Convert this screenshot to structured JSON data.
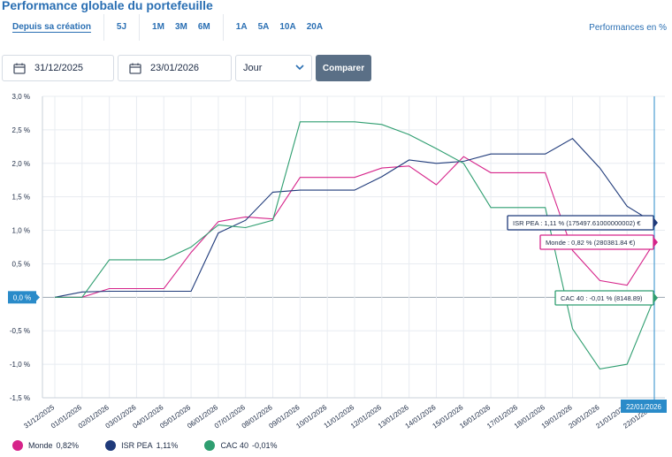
{
  "header": {
    "title": "Performance globale du portefeuille",
    "performance_link": "Performances en %"
  },
  "tabs": {
    "groups": [
      [
        {
          "label": "Depuis sa création",
          "active": true
        }
      ],
      [
        {
          "label": "5J",
          "active": false
        }
      ],
      [
        {
          "label": "1M",
          "active": false
        },
        {
          "label": "3M",
          "active": false
        },
        {
          "label": "6M",
          "active": false
        }
      ],
      [
        {
          "label": "1A",
          "active": false
        },
        {
          "label": "5A",
          "active": false
        },
        {
          "label": "10A",
          "active": false
        },
        {
          "label": "20A",
          "active": false
        }
      ]
    ]
  },
  "filters": {
    "start_date": "31/12/2025",
    "end_date": "23/01/2026",
    "granularity": "Jour",
    "compare_label": "Comparer"
  },
  "colors": {
    "monde": "#d6248a",
    "isr_pea": "#1f3a7a",
    "cac40": "#2f9e70",
    "accent": "#2a6fb3",
    "marker": "#2a8bc9"
  },
  "chart_data": {
    "type": "line",
    "x": [
      "31/12/2025",
      "01/01/2026",
      "02/01/2026",
      "03/01/2026",
      "04/01/2026",
      "05/01/2026",
      "06/01/2026",
      "07/01/2026",
      "08/01/2026",
      "09/01/2026",
      "10/01/2026",
      "11/01/2026",
      "12/01/2026",
      "13/01/2026",
      "14/01/2026",
      "15/01/2026",
      "16/01/2026",
      "17/01/2026",
      "18/01/2026",
      "19/01/2026",
      "20/01/2026",
      "21/01/2026",
      "22/01/2026"
    ],
    "y_ticks": [
      "3,0 %",
      "2,5 %",
      "2,0 %",
      "1,5 %",
      "1,0 %",
      "0,5 %",
      "0,0 %",
      "-0,5 %",
      "-1,0 %",
      "-1,5 %"
    ],
    "ylim": [
      -1.5,
      3.0
    ],
    "grid": true,
    "series": [
      {
        "name": "Monde",
        "color_key": "monde",
        "values": [
          0,
          0,
          0.13,
          0.13,
          0.13,
          0.67,
          1.13,
          1.2,
          1.17,
          1.79,
          1.79,
          1.79,
          1.93,
          1.96,
          1.68,
          2.1,
          1.86,
          1.86,
          1.86,
          0.7,
          0.25,
          0.18,
          0.82
        ]
      },
      {
        "name": "ISR PEA",
        "color_key": "isr_pea",
        "values": [
          0,
          0.08,
          0.09,
          0.09,
          0.09,
          0.09,
          0.96,
          1.15,
          1.57,
          1.6,
          1.6,
          1.6,
          1.8,
          2.05,
          2.0,
          2.03,
          2.14,
          2.14,
          2.14,
          2.37,
          1.93,
          1.36,
          1.11
        ]
      },
      {
        "name": "CAC 40",
        "color_key": "cac40",
        "values": [
          0,
          0,
          0.56,
          0.56,
          0.56,
          0.75,
          1.08,
          1.04,
          1.15,
          2.62,
          2.62,
          2.62,
          2.58,
          2.43,
          2.22,
          2.0,
          1.34,
          1.34,
          1.34,
          -0.47,
          -1.07,
          -1.0,
          -0.01
        ]
      }
    ],
    "zero_label": "0,0 %",
    "cursor_date": "22/01/2026",
    "tooltips": [
      {
        "series": "isr_pea",
        "text": "ISR PEA : 1,11 % (175497.61000000002) €"
      },
      {
        "series": "monde",
        "text": "Monde : 0,82 % (280381.84 €)"
      },
      {
        "series": "cac40",
        "text": "CAC 40 : -0,01 % (8148.89)"
      }
    ],
    "legend": [
      {
        "label": "Monde",
        "value": "0,82%",
        "color_key": "monde"
      },
      {
        "label": "ISR PEA",
        "value": "1,11%",
        "color_key": "isr_pea"
      },
      {
        "label": "CAC 40",
        "value": "-0,01%",
        "color_key": "cac40"
      }
    ]
  }
}
